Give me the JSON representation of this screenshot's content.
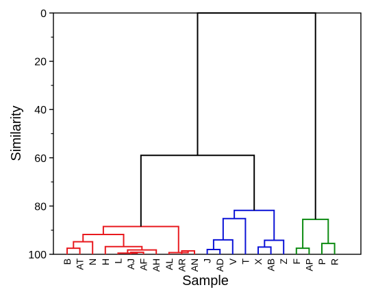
{
  "chart_data": {
    "type": "dendrogram",
    "xlabel": "Sample",
    "ylabel": "Similarity",
    "ylim": [
      0,
      100
    ],
    "y_inverted": true,
    "yticks": [
      0,
      20,
      40,
      60,
      80,
      100
    ],
    "grid": false,
    "colors": {
      "red": "#e8191e",
      "blue": "#0a12d6",
      "green": "#0b8a10",
      "black": "#000000"
    },
    "leaves": [
      "B",
      "AT",
      "N",
      "H",
      "L",
      "AJ",
      "AF",
      "AH",
      "AL",
      "AR",
      "AN",
      "J",
      "AD",
      "V",
      "T",
      "X",
      "AB",
      "Z",
      "F",
      "AP",
      "P",
      "R"
    ],
    "merges": [
      {
        "a": "B",
        "b": "AT",
        "sim": 97.5,
        "color": "red"
      },
      {
        "a": "c1",
        "b": "N",
        "sim": 94.8,
        "color": "red"
      },
      {
        "a": "AJ",
        "b": "AF",
        "sim": 99.2,
        "color": "red"
      },
      {
        "a": "L",
        "b": "c3",
        "sim": 99.5,
        "color": "red"
      },
      {
        "a": "c4",
        "b": "AH",
        "sim": 98.2,
        "color": "red"
      },
      {
        "a": "H",
        "b": "c5",
        "sim": 96.8,
        "color": "red"
      },
      {
        "a": "c2",
        "b": "c6",
        "sim": 91.8,
        "color": "red"
      },
      {
        "a": "AR",
        "b": "AN",
        "sim": 98.6,
        "color": "red"
      },
      {
        "a": "AL",
        "b": "c8",
        "sim": 99.3,
        "color": "red"
      },
      {
        "a": "c7",
        "b": "c9",
        "sim": 88.5,
        "color": "red"
      },
      {
        "a": "J",
        "b": "AD",
        "sim": 98.0,
        "color": "blue"
      },
      {
        "a": "c11",
        "b": "V",
        "sim": 94.0,
        "color": "blue"
      },
      {
        "a": "c12",
        "b": "T",
        "sim": 85.2,
        "color": "blue"
      },
      {
        "a": "X",
        "b": "AB",
        "sim": 97.0,
        "color": "blue"
      },
      {
        "a": "c14",
        "b": "Z",
        "sim": 94.2,
        "color": "blue"
      },
      {
        "a": "c13",
        "b": "c15",
        "sim": 81.8,
        "color": "blue"
      },
      {
        "a": "F",
        "b": "AP",
        "sim": 97.5,
        "color": "green"
      },
      {
        "a": "P",
        "b": "R",
        "sim": 95.5,
        "color": "green"
      },
      {
        "a": "c17",
        "b": "c18",
        "sim": 85.5,
        "color": "green"
      },
      {
        "a": "c10",
        "b": "c16",
        "sim": 59.0,
        "color": "black"
      },
      {
        "a": "c20",
        "b": "c19",
        "sim": 0.0,
        "color": "black"
      }
    ]
  }
}
